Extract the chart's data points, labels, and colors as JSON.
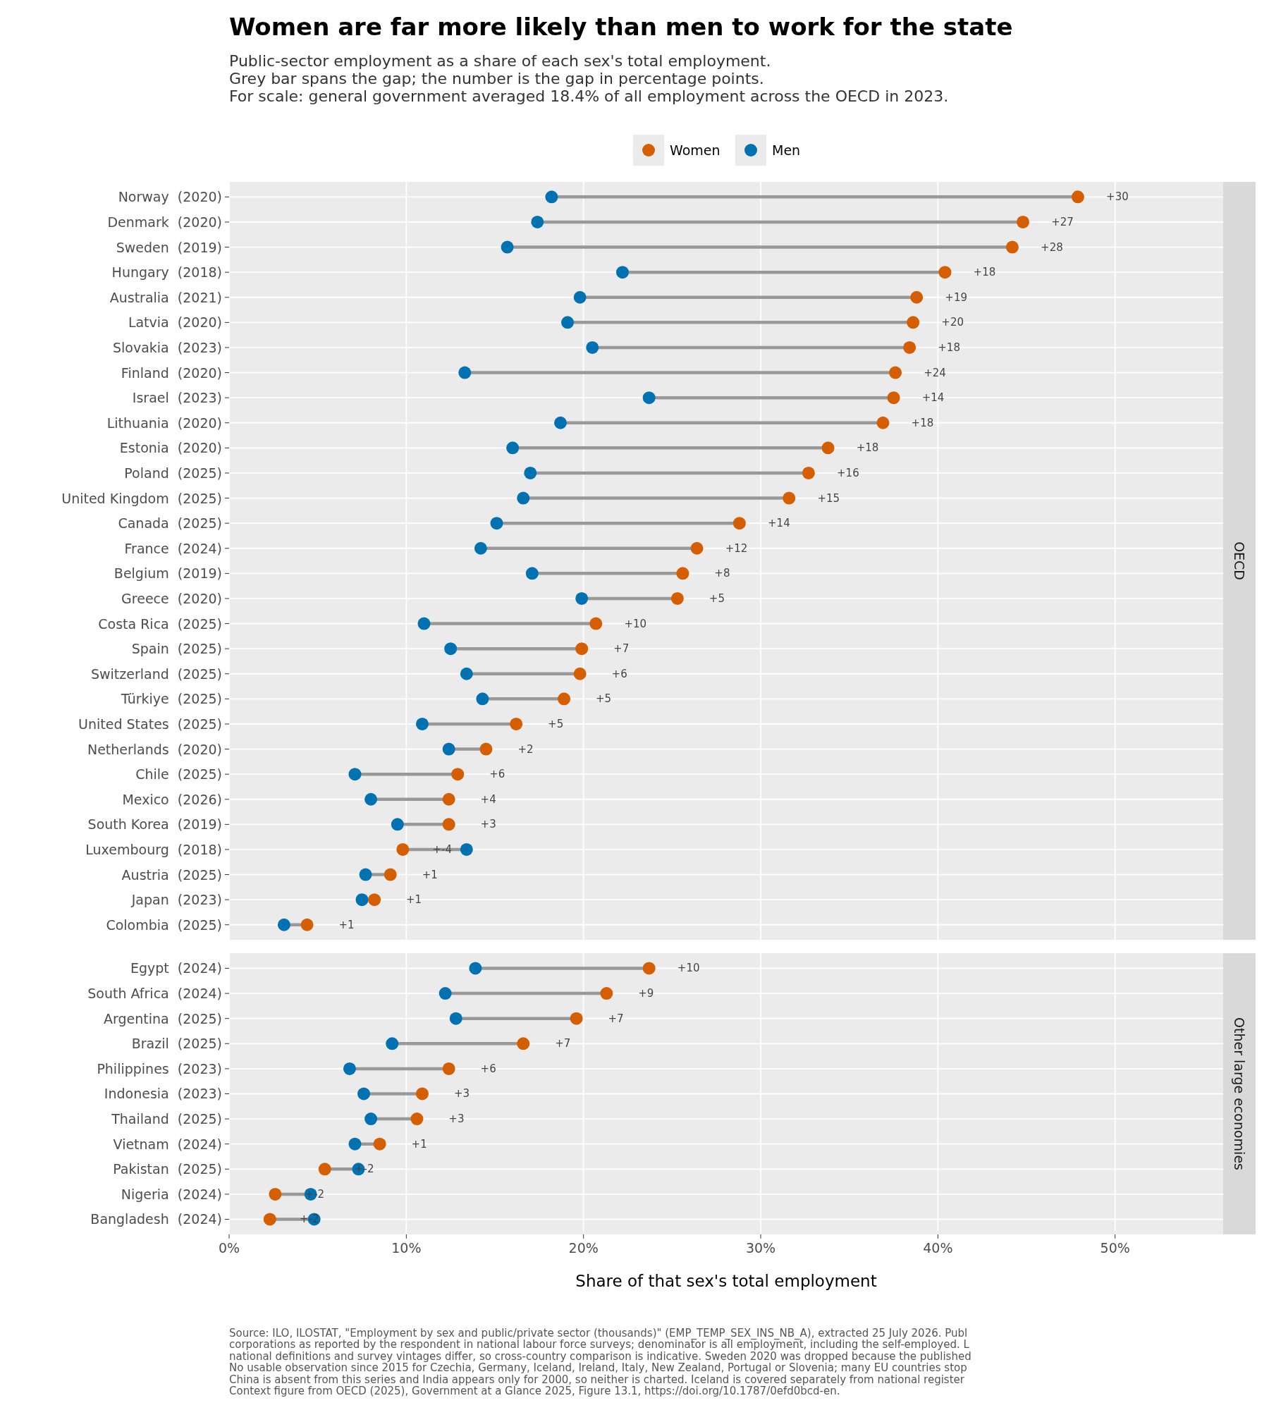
{
  "chart_data": [
    {
      "type": "scatter",
      "orientation": "horizontal",
      "title": "Women are far more likely than men to work for the state",
      "subtitle": "Public-sector employment as a share of each sex's total employment.\nGrey bar spans the gap; the number is the gap in percentage points.\nFor scale: general government averaged 18.4% of all employment across the OECD in 2023.",
      "y2label": "OECD",
      "legend": "top",
      "grid": true,
      "marker": "circle",
      "tick_labels": "y",
      "categories": [
        "Norway  (2020)",
        "Denmark  (2020)",
        "Sweden  (2019)",
        "Hungary  (2018)",
        "Australia  (2021)",
        "Latvia  (2020)",
        "Slovakia  (2023)",
        "Finland  (2020)",
        "Israel  (2023)",
        "Lithuania  (2020)",
        "Estonia  (2020)",
        "Poland  (2025)",
        "United Kingdom  (2025)",
        "Canada  (2025)",
        "France  (2024)",
        "Belgium  (2019)",
        "Greece  (2020)",
        "Costa Rica  (2025)",
        "Spain  (2025)",
        "Switzerland  (2025)",
        "Türkiye  (2025)",
        "United States  (2025)",
        "Netherlands  (2020)",
        "Chile  (2025)",
        "Mexico  (2026)",
        "South Korea  (2019)",
        "Luxembourg  (2018)",
        "Austria  (2025)",
        "Japan  (2023)",
        "Colombia  (2025)"
      ],
      "series": [
        {
          "name": "Women",
          "color": "#d55e00",
          "values": [
            47.9,
            44.8,
            44.2,
            40.4,
            38.8,
            38.6,
            38.4,
            37.6,
            37.5,
            36.9,
            33.8,
            32.7,
            31.6,
            28.8,
            26.4,
            25.6,
            25.3,
            20.7,
            19.9,
            19.8,
            18.9,
            16.2,
            14.5,
            12.9,
            12.4,
            12.4,
            9.8,
            9.1,
            8.2,
            4.4
          ]
        },
        {
          "name": "Men",
          "color": "#0072b2",
          "values": [
            18.2,
            17.4,
            15.7,
            22.2,
            19.8,
            19.1,
            20.5,
            13.3,
            23.7,
            18.7,
            16.0,
            17.0,
            16.6,
            15.1,
            14.2,
            17.1,
            19.9,
            11.0,
            12.5,
            13.4,
            14.3,
            10.9,
            12.4,
            7.1,
            8.0,
            9.5,
            13.4,
            7.7,
            7.5,
            3.1
          ]
        }
      ],
      "xlim": [
        0,
        56.1
      ],
      "xticks": [
        0,
        10,
        20,
        30,
        40,
        50
      ],
      "annotations": [
        "+30",
        "+27",
        "+28",
        "+18",
        "+19",
        "+20",
        "+18",
        "+24",
        "+14",
        "+18",
        "+18",
        "+16",
        "+15",
        "+14",
        "+12",
        "+8",
        "+5",
        "+10",
        "+7",
        "+6",
        "+5",
        "+5",
        "+2",
        "+6",
        "+4",
        "+3",
        "+-4",
        "+1",
        "+1",
        "+1"
      ]
    },
    {
      "type": "scatter",
      "orientation": "horizontal",
      "xlabel": "Share of that sex's total employment",
      "y2label": "Other large economies",
      "grid": true,
      "marker": "circle",
      "categories": [
        "Egypt  (2024)",
        "South Africa  (2024)",
        "Argentina  (2025)",
        "Brazil  (2025)",
        "Philippines  (2023)",
        "Indonesia  (2023)",
        "Thailand  (2025)",
        "Vietnam  (2024)",
        "Pakistan  (2025)",
        "Nigeria  (2024)",
        "Bangladesh  (2024)"
      ],
      "series": [
        {
          "color": "#d55e00",
          "values": [
            23.7,
            21.3,
            19.6,
            16.6,
            12.4,
            10.9,
            10.6,
            8.5,
            5.4,
            2.6,
            2.3
          ]
        },
        {
          "color": "#0072b2",
          "values": [
            13.9,
            12.2,
            12.8,
            9.2,
            6.8,
            7.6,
            8.0,
            7.1,
            7.3,
            4.6,
            4.8
          ]
        }
      ],
      "xlim": [
        0,
        56.1
      ],
      "xticks": [
        {
          "value": 0,
          "label": "0%"
        },
        {
          "value": 10,
          "label": "10%"
        },
        {
          "value": 20,
          "label": "20%"
        },
        {
          "value": 30,
          "label": "30%"
        },
        {
          "value": 40,
          "label": "40%"
        },
        {
          "value": 50,
          "label": "50%"
        }
      ],
      "annotations": [
        "+10",
        "+9",
        "+7",
        "+7",
        "+6",
        "+3",
        "+3",
        "+1",
        "+-2",
        "+-2",
        "+-2",
        "Source: ILO, ILOSTAT, \"Employment by sex and public/private sector (thousands)\" (EMP_TEMP_SEX_INS_NB_A), extracted 25 July 2026. Publ",
        "corporations as reported by the respondent in national labour force surveys; denominator is all employment, including the self-employed. L",
        "national definitions and survey vintages differ, so cross-country comparison is indicative. Sweden 2020 was dropped because the published",
        "No usable observation since 2015 for Czechia, Germany, Iceland, Ireland, Italy, New Zealand, Portugal or Slovenia; many EU countries stop",
        "China is absent from this series and India appears only for 2000, so neither is charted. Iceland is covered separately from national register",
        "Context figure from OECD (2025), Government at a Glance 2025, Figure 13.1, https://doi.org/10.1787/0efd0bcd-en."
      ]
    }
  ]
}
